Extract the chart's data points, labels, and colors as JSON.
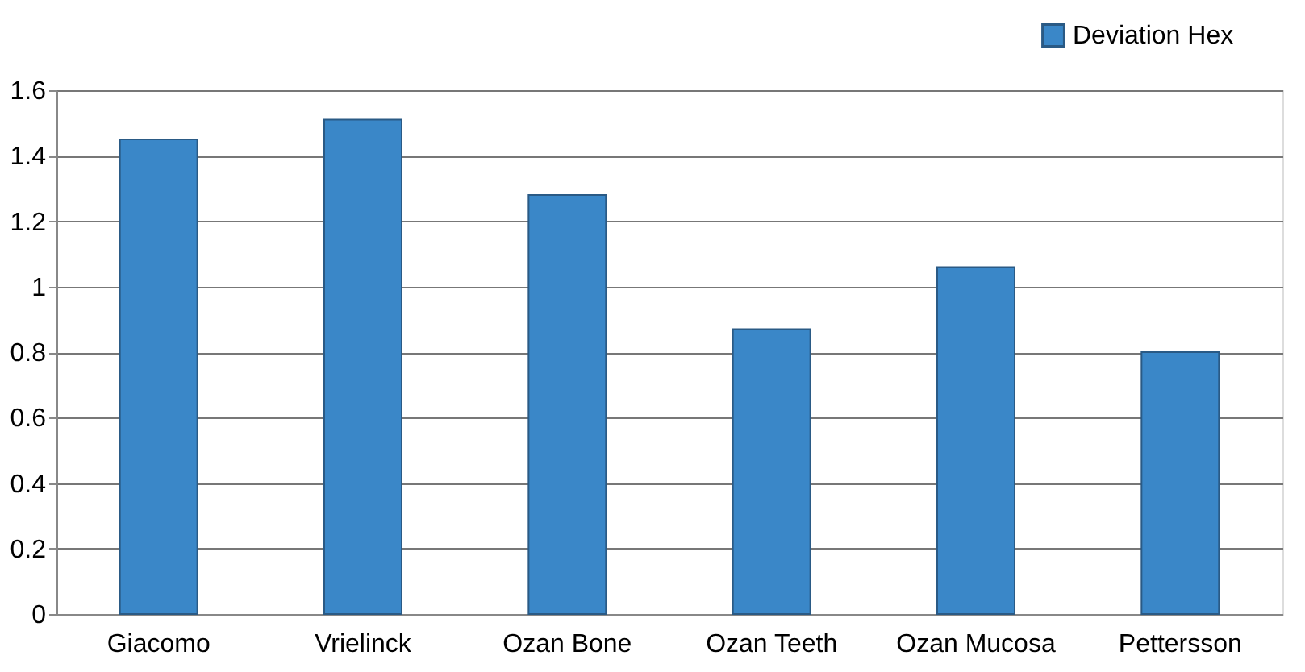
{
  "chart_data": {
    "type": "bar",
    "categories": [
      "Giacomo",
      "Vrielinck",
      "Ozan Bone",
      "Ozan Teeth",
      "Ozan Mucosa",
      "Pettersson"
    ],
    "series": [
      {
        "name": "Deviation Hex",
        "color": "#3a87c8",
        "values": [
          1.45,
          1.51,
          1.28,
          0.87,
          1.06,
          0.8
        ]
      }
    ],
    "ylim": [
      0,
      1.6
    ],
    "yticks": [
      0,
      0.2,
      0.4,
      0.6,
      0.8,
      1,
      1.2,
      1.4,
      1.6
    ],
    "grid": "y",
    "legend": "top right"
  }
}
